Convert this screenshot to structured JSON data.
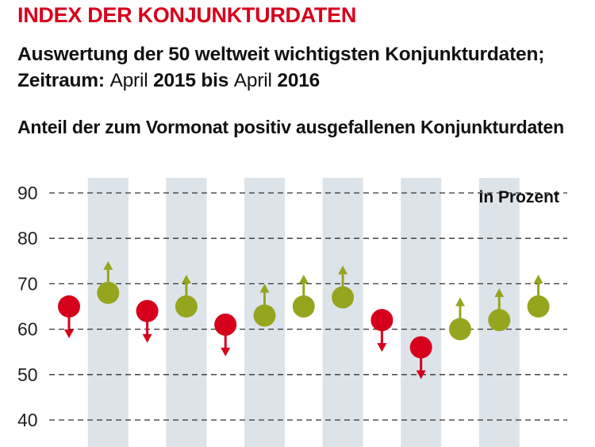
{
  "header": {
    "title": "INDEX DER KONJUNKTURDATEN",
    "subtitle_line1": "Auswertung der 50 weltweit wichtigsten Konjunkturdaten;",
    "subtitle_line2_label": "Zeitraum:",
    "subtitle_line2_from_month": "April",
    "subtitle_line2_from_year": "2015 bis",
    "subtitle_line2_to_month": "April",
    "subtitle_line2_to_year": "2016",
    "chart_heading": "Anteil der zum Vormonat positiv ausgefallenen Konjunkturdaten"
  },
  "colors": {
    "up": "#96a51e",
    "down": "#d6001c",
    "band": "#dce4ea",
    "grid": "#333333"
  },
  "chart_data": {
    "type": "scatter",
    "title": "Anteil der zum Vormonat positiv ausgefallenen Konjunkturdaten",
    "unit_label": "in Prozent",
    "ylim": [
      40,
      90
    ],
    "yticks": [
      40,
      50,
      60,
      70,
      80,
      90
    ],
    "grid": true,
    "points": [
      {
        "index": 1,
        "value": 65,
        "direction": "down"
      },
      {
        "index": 2,
        "value": 68,
        "direction": "up"
      },
      {
        "index": 3,
        "value": 64,
        "direction": "down"
      },
      {
        "index": 4,
        "value": 65,
        "direction": "up"
      },
      {
        "index": 5,
        "value": 61,
        "direction": "down"
      },
      {
        "index": 6,
        "value": 63,
        "direction": "up"
      },
      {
        "index": 7,
        "value": 65,
        "direction": "up"
      },
      {
        "index": 8,
        "value": 67,
        "direction": "up"
      },
      {
        "index": 9,
        "value": 62,
        "direction": "down"
      },
      {
        "index": 10,
        "value": 56,
        "direction": "down"
      },
      {
        "index": 11,
        "value": 60,
        "direction": "up"
      },
      {
        "index": 12,
        "value": 62,
        "direction": "up"
      },
      {
        "index": 13,
        "value": 65,
        "direction": "up"
      }
    ]
  }
}
